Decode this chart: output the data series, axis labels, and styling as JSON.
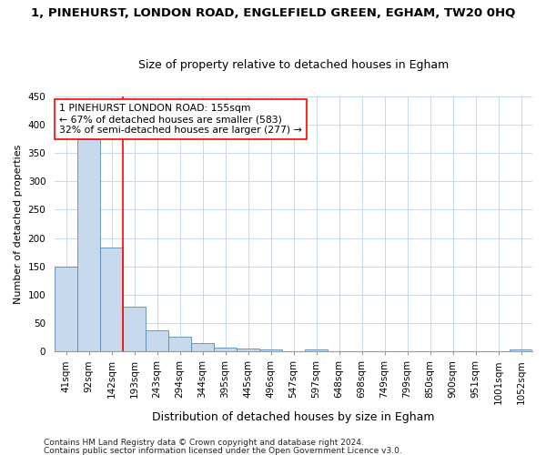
{
  "title": "1, PINEHURST, LONDON ROAD, ENGLEFIELD GREEN, EGHAM, TW20 0HQ",
  "subtitle": "Size of property relative to detached houses in Egham",
  "xlabel": "Distribution of detached houses by size in Egham",
  "ylabel": "Number of detached properties",
  "footnote1": "Contains HM Land Registry data © Crown copyright and database right 2024.",
  "footnote2": "Contains public sector information licensed under the Open Government Licence v3.0.",
  "bin_labels": [
    "41sqm",
    "92sqm",
    "142sqm",
    "193sqm",
    "243sqm",
    "294sqm",
    "344sqm",
    "395sqm",
    "445sqm",
    "496sqm",
    "547sqm",
    "597sqm",
    "648sqm",
    "698sqm",
    "749sqm",
    "799sqm",
    "850sqm",
    "900sqm",
    "951sqm",
    "1001sqm",
    "1052sqm"
  ],
  "bar_values": [
    150,
    375,
    183,
    78,
    37,
    25,
    14,
    7,
    5,
    4,
    0,
    4,
    0,
    0,
    0,
    0,
    0,
    0,
    0,
    0,
    3
  ],
  "bar_color": "#c8d9ee",
  "bar_edge_color": "#5588bb",
  "ylim": [
    0,
    450
  ],
  "yticks": [
    0,
    50,
    100,
    150,
    200,
    250,
    300,
    350,
    400,
    450
  ],
  "property_label": "1 PINEHURST LONDON ROAD: 155sqm",
  "pct_smaller": "67% of detached houses are smaller (583)",
  "pct_larger": "32% of semi-detached houses are larger (277)",
  "red_line_x": 2.5,
  "bg_color": "#ffffff",
  "grid_color": "#c8d8ec",
  "title_fontsize": 9.5,
  "subtitle_fontsize": 9,
  "ylabel_fontsize": 8,
  "xlabel_fontsize": 9,
  "tick_fontsize": 7.5,
  "footnote_fontsize": 6.5
}
